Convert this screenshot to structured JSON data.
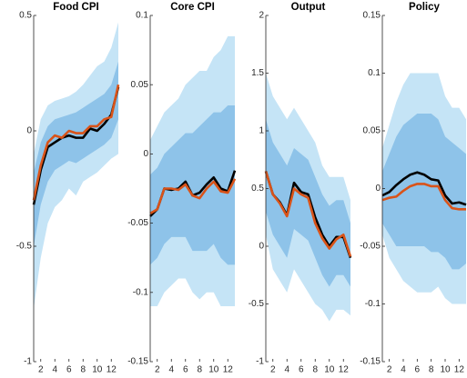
{
  "chart_data": [
    {
      "type": "line",
      "title": "Food CPI",
      "x": [
        1,
        2,
        3,
        4,
        5,
        6,
        7,
        8,
        9,
        10,
        11,
        12,
        13
      ],
      "xlim": [
        1,
        13
      ],
      "xticks": [
        2,
        4,
        6,
        8,
        10,
        12
      ],
      "ylim": [
        -1,
        0.5
      ],
      "yticks": [
        -1,
        -0.5,
        0,
        0.5
      ],
      "bands": [
        {
          "color": "#c5e4f6",
          "lower": [
            -0.77,
            -0.55,
            -0.4,
            -0.33,
            -0.3,
            -0.25,
            -0.28,
            -0.22,
            -0.2,
            -0.18,
            -0.15,
            -0.12,
            -0.1
          ],
          "upper": [
            -0.1,
            0.05,
            0.11,
            0.13,
            0.14,
            0.15,
            0.17,
            0.2,
            0.24,
            0.28,
            0.3,
            0.36,
            0.47
          ]
        },
        {
          "color": "#8ec3e9",
          "lower": [
            -0.5,
            -0.32,
            -0.22,
            -0.17,
            -0.15,
            -0.13,
            -0.14,
            -0.12,
            -0.1,
            -0.08,
            -0.06,
            -0.03,
            0.05
          ],
          "upper": [
            -0.18,
            -0.05,
            0.02,
            0.05,
            0.06,
            0.07,
            0.08,
            0.1,
            0.12,
            0.14,
            0.16,
            0.2,
            0.3
          ]
        }
      ],
      "series": [
        {
          "color": "#000000",
          "values": [
            -0.32,
            -0.17,
            -0.07,
            -0.05,
            -0.03,
            -0.02,
            -0.03,
            -0.03,
            0.01,
            0.0,
            0.03,
            0.07,
            0.19
          ]
        },
        {
          "color": "#d95319",
          "values": [
            -0.3,
            -0.15,
            -0.05,
            -0.02,
            -0.03,
            0.0,
            -0.01,
            -0.01,
            0.02,
            0.02,
            0.05,
            0.06,
            0.2
          ]
        }
      ]
    },
    {
      "type": "line",
      "title": "Core CPI",
      "x": [
        1,
        2,
        3,
        4,
        5,
        6,
        7,
        8,
        9,
        10,
        11,
        12,
        13
      ],
      "xlim": [
        1,
        13
      ],
      "xticks": [
        2,
        4,
        6,
        8,
        10,
        12
      ],
      "ylim": [
        -0.15,
        0.1
      ],
      "yticks": [
        -0.15,
        -0.1,
        -0.05,
        0,
        0.05,
        0.1
      ],
      "bands": [
        {
          "color": "#c5e4f6",
          "lower": [
            -0.11,
            -0.11,
            -0.1,
            -0.095,
            -0.09,
            -0.09,
            -0.1,
            -0.105,
            -0.1,
            -0.1,
            -0.11,
            -0.11,
            -0.11
          ],
          "upper": [
            0.01,
            0.02,
            0.03,
            0.035,
            0.04,
            0.05,
            0.055,
            0.06,
            0.06,
            0.07,
            0.075,
            0.085,
            0.085
          ]
        },
        {
          "color": "#8ec3e9",
          "lower": [
            -0.08,
            -0.075,
            -0.065,
            -0.06,
            -0.06,
            -0.06,
            -0.07,
            -0.07,
            -0.07,
            -0.065,
            -0.075,
            -0.08,
            -0.08
          ],
          "upper": [
            -0.015,
            -0.01,
            0.0,
            0.005,
            0.01,
            0.015,
            0.015,
            0.02,
            0.025,
            0.03,
            0.03,
            0.035,
            0.035
          ]
        }
      ],
      "series": [
        {
          "color": "#000000",
          "values": [
            -0.045,
            -0.04,
            -0.025,
            -0.026,
            -0.025,
            -0.02,
            -0.03,
            -0.028,
            -0.022,
            -0.017,
            -0.025,
            -0.027,
            -0.012
          ]
        },
        {
          "color": "#d95319",
          "values": [
            -0.043,
            -0.04,
            -0.025,
            -0.025,
            -0.026,
            -0.022,
            -0.03,
            -0.032,
            -0.025,
            -0.02,
            -0.027,
            -0.028,
            -0.018
          ]
        }
      ]
    },
    {
      "type": "line",
      "title": "Output",
      "x": [
        1,
        2,
        3,
        4,
        5,
        6,
        7,
        8,
        9,
        10,
        11,
        12,
        13
      ],
      "xlim": [
        1,
        13
      ],
      "xticks": [
        2,
        4,
        6,
        8,
        10,
        12
      ],
      "ylim": [
        -1,
        2
      ],
      "yticks": [
        -1,
        -0.5,
        0,
        0.5,
        1,
        1.5,
        2
      ],
      "bands": [
        {
          "color": "#c5e4f6",
          "lower": [
            0.1,
            -0.2,
            -0.3,
            -0.4,
            -0.2,
            -0.3,
            -0.4,
            -0.5,
            -0.55,
            -0.65,
            -0.55,
            -0.55,
            -0.6
          ],
          "upper": [
            1.5,
            1.3,
            1.2,
            1.1,
            1.2,
            1.1,
            1.0,
            0.9,
            0.7,
            0.6,
            0.6,
            0.6,
            0.4
          ]
        },
        {
          "color": "#8ec3e9",
          "lower": [
            0.3,
            0.1,
            0.0,
            -0.1,
            0.15,
            0.1,
            0.05,
            -0.1,
            -0.25,
            -0.35,
            -0.25,
            -0.25,
            -0.35
          ],
          "upper": [
            1.1,
            0.9,
            0.8,
            0.7,
            0.85,
            0.8,
            0.75,
            0.6,
            0.45,
            0.35,
            0.4,
            0.4,
            0.2
          ]
        }
      ],
      "series": [
        {
          "color": "#000000",
          "values": [
            0.65,
            0.45,
            0.38,
            0.27,
            0.55,
            0.47,
            0.45,
            0.25,
            0.1,
            0.0,
            0.08,
            0.08,
            -0.1
          ]
        },
        {
          "color": "#d95319",
          "values": [
            0.65,
            0.45,
            0.37,
            0.26,
            0.5,
            0.45,
            0.42,
            0.2,
            0.07,
            -0.02,
            0.06,
            0.1,
            -0.09
          ]
        }
      ]
    },
    {
      "type": "line",
      "title": "Policy",
      "x": [
        1,
        2,
        3,
        4,
        5,
        6,
        7,
        8,
        9,
        10,
        11,
        12,
        13
      ],
      "xlim": [
        1,
        13
      ],
      "xticks": [
        2,
        4,
        6,
        8,
        10,
        12
      ],
      "ylim": [
        -0.15,
        0.15
      ],
      "yticks": [
        -0.15,
        -0.1,
        -0.05,
        0,
        0.05,
        0.1,
        0.15
      ],
      "bands": [
        {
          "color": "#c5e4f6",
          "lower": [
            -0.04,
            -0.06,
            -0.07,
            -0.08,
            -0.085,
            -0.09,
            -0.09,
            -0.09,
            -0.085,
            -0.095,
            -0.1,
            -0.1,
            -0.1
          ],
          "upper": [
            0.035,
            0.055,
            0.075,
            0.09,
            0.1,
            0.1,
            0.1,
            0.1,
            0.1,
            0.08,
            0.07,
            0.07,
            0.06
          ]
        },
        {
          "color": "#8ec3e9",
          "lower": [
            -0.03,
            -0.04,
            -0.05,
            -0.05,
            -0.05,
            -0.05,
            -0.05,
            -0.055,
            -0.055,
            -0.06,
            -0.07,
            -0.07,
            -0.065
          ],
          "upper": [
            0.015,
            0.03,
            0.045,
            0.055,
            0.06,
            0.065,
            0.065,
            0.065,
            0.06,
            0.045,
            0.04,
            0.035,
            0.03
          ]
        }
      ],
      "series": [
        {
          "color": "#000000",
          "values": [
            -0.006,
            -0.003,
            0.003,
            0.008,
            0.012,
            0.014,
            0.012,
            0.008,
            0.007,
            -0.006,
            -0.013,
            -0.012,
            -0.014
          ]
        },
        {
          "color": "#d95319",
          "values": [
            -0.01,
            -0.008,
            -0.007,
            -0.002,
            0.002,
            0.004,
            0.004,
            0.002,
            0.002,
            -0.01,
            -0.017,
            -0.018,
            -0.018
          ]
        }
      ]
    }
  ]
}
